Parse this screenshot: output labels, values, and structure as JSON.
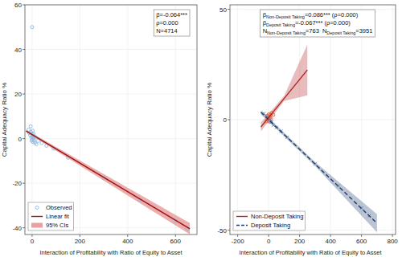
{
  "chart_data": [
    {
      "type": "scatter",
      "y_label": "Capital Adequacy Ratio %",
      "x_label": "Interaction of Profitability with Ratio of Equity to Asset",
      "annotation": [
        "β=-0.064***",
        "ρ=0.000",
        "N=4714"
      ],
      "xlim": [
        -30,
        690
      ],
      "ylim": [
        -43,
        60
      ],
      "xticks": [
        0,
        200,
        400,
        600
      ],
      "yticks": [
        -40,
        -20,
        0,
        20,
        40,
        60
      ],
      "grid": true,
      "legend": "bottom-left",
      "series": [
        {
          "name": "Observed",
          "type": "scatter",
          "color": "#8fb8de",
          "marker": "circle",
          "x": [
            -12,
            -8,
            -5,
            -3,
            -2,
            0,
            0,
            1,
            2,
            3,
            4,
            5,
            6,
            8,
            10,
            12,
            15,
            18,
            -15,
            -6,
            0,
            25,
            40,
            60,
            90,
            150,
            300,
            450,
            600,
            650
          ],
          "values": [
            2.5,
            1.5,
            3,
            0.5,
            -1,
            2,
            1,
            -0.5,
            3.5,
            1.2,
            -1.5,
            0.3,
            2.2,
            -0.8,
            1,
            -1.8,
            0.5,
            -2.5,
            4,
            5.5,
            50,
            -1,
            -2,
            -3.2,
            -4.5,
            -8.5,
            -17.8,
            -27.5,
            -37,
            -40.5
          ]
        },
        {
          "name": "Linear fit",
          "type": "line",
          "color": "#a01010",
          "line_style": "solid",
          "x": [
            -25,
            660
          ],
          "values": [
            3.4,
            -40.4
          ]
        },
        {
          "name": "95% CIs",
          "type": "area",
          "color": "#e8a0a0",
          "x": [
            -25,
            660
          ],
          "lower": [
            2.9,
            -42.9
          ],
          "upper": [
            3.9,
            -37.9
          ]
        }
      ]
    },
    {
      "type": "scatter",
      "y_label": "Capital Adequacy Ratio %",
      "x_label": "Interaction of Profitability with Ratio of Equity to Asset",
      "annotation": [
        [
          [
            "β",
            "Non-Deposit Taking",
            "=0.086*** (ρ=0.000)"
          ]
        ],
        [
          [
            "β",
            "Deposit Taking",
            "=-0.067*** (ρ=0.000)"
          ]
        ],
        [
          [
            "N",
            "Non-Deposit Taking",
            "=763"
          ],
          [
            "N",
            "Deposit Taking",
            "=3951"
          ]
        ]
      ],
      "xlim": [
        -250,
        820
      ],
      "ylim": [
        -52,
        52
      ],
      "xticks": [
        -200,
        0,
        200,
        400,
        600,
        800
      ],
      "yticks": [
        -50,
        0,
        50
      ],
      "grid": true,
      "legend": "bottom-left",
      "series": [
        {
          "type": "scatter",
          "color": "#5b7fb5",
          "marker": "x",
          "x": [
            -20,
            -10,
            -5,
            0,
            2,
            5,
            8,
            10,
            15,
            20,
            30,
            50,
            80,
            120,
            -30,
            300,
            450,
            600,
            650
          ],
          "values": [
            2,
            1.5,
            0.5,
            1,
            -0.5,
            0.8,
            -1,
            0,
            -1.2,
            -1,
            -2.5,
            -3.5,
            -5.2,
            -8,
            2.8,
            -20,
            -30,
            -40,
            -43.5
          ]
        },
        {
          "type": "scatter",
          "color": "#e0603a",
          "marker": "circle",
          "x": [
            -8,
            -3,
            0,
            2,
            5,
            10,
            15,
            20,
            -15,
            30
          ],
          "values": [
            0.5,
            1.8,
            -0.5,
            2.5,
            1,
            2,
            0.5,
            3,
            -0.8,
            2.2
          ]
        },
        {
          "name": "Non-Deposit Taking",
          "type": "line",
          "color": "#b22222",
          "line_style": "solid",
          "x": [
            -50,
            100,
            250
          ],
          "values": [
            -3.3,
            9.6,
            22.5
          ],
          "ci_lower": [
            -5.3,
            8.5,
            11
          ],
          "ci_upper": [
            -1.3,
            10.7,
            34
          ]
        },
        {
          "name": "Deposit Taking",
          "type": "line",
          "color": "#1f3a6e",
          "line_style": "dashed",
          "x": [
            -50,
            300,
            700
          ],
          "values": [
            3.35,
            -20.1,
            -46.9
          ],
          "ci_lower": [
            2.5,
            -21,
            -51
          ],
          "ci_upper": [
            4.2,
            -19.2,
            -42.8
          ]
        }
      ]
    }
  ]
}
